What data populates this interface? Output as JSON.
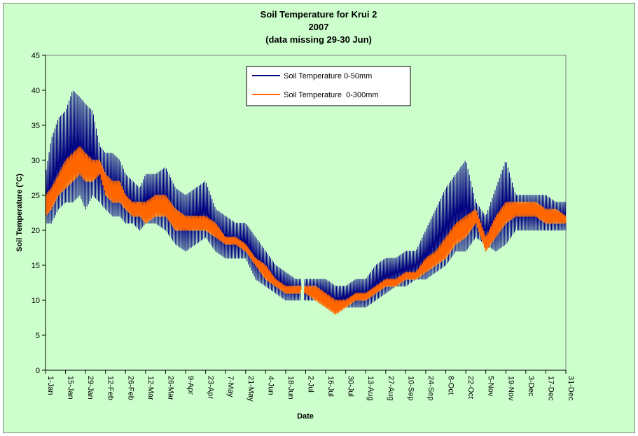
{
  "chart_data": {
    "type": "line",
    "title": [
      "Soil Temperature for Krui 2",
      "2007",
      "(data missing 29-30 Jun)"
    ],
    "xlabel": "Date",
    "ylabel": "Soil Temperature (°C)",
    "ylim": [
      0,
      45
    ],
    "yticks": [
      0,
      5,
      10,
      15,
      20,
      25,
      30,
      35,
      40,
      45
    ],
    "xlim": [
      "2007-01-01",
      "2007-12-31"
    ],
    "xtick_labels": [
      "1-Jan",
      "15-Jan",
      "29-Jan",
      "12-Feb",
      "26-Feb",
      "12-Mar",
      "26-Mar",
      "9-Apr",
      "23-Apr",
      "7-May",
      "21-May",
      "4-Jun",
      "18-Jun",
      "2-Jul",
      "16-Jul",
      "30-Jul",
      "13-Aug",
      "27-Aug",
      "10-Sep",
      "24-Sep",
      "8-Oct",
      "22-Oct",
      "5-Nov",
      "19-Nov",
      "3-Dec",
      "17-Dec",
      "31-Dec"
    ],
    "grid": false,
    "legend_position": "top-center",
    "series": [
      {
        "name": "Soil Temperature 0-50mm",
        "color": "#000080",
        "x": [
          "2007-01-01",
          "2007-01-05",
          "2007-01-10",
          "2007-01-15",
          "2007-01-20",
          "2007-01-25",
          "2007-01-29",
          "2007-02-03",
          "2007-02-08",
          "2007-02-12",
          "2007-02-17",
          "2007-02-22",
          "2007-02-26",
          "2007-03-03",
          "2007-03-08",
          "2007-03-12",
          "2007-03-19",
          "2007-03-26",
          "2007-04-02",
          "2007-04-09",
          "2007-04-16",
          "2007-04-23",
          "2007-04-30",
          "2007-05-07",
          "2007-05-14",
          "2007-05-21",
          "2007-05-28",
          "2007-06-04",
          "2007-06-11",
          "2007-06-18",
          "2007-06-25",
          "2007-07-02",
          "2007-07-09",
          "2007-07-16",
          "2007-07-23",
          "2007-07-30",
          "2007-08-06",
          "2007-08-13",
          "2007-08-20",
          "2007-08-27",
          "2007-09-03",
          "2007-09-10",
          "2007-09-17",
          "2007-09-24",
          "2007-10-01",
          "2007-10-08",
          "2007-10-15",
          "2007-10-22",
          "2007-10-29",
          "2007-11-05",
          "2007-11-12",
          "2007-11-19",
          "2007-11-26",
          "2007-12-03",
          "2007-12-10",
          "2007-12-17",
          "2007-12-24",
          "2007-12-31"
        ],
        "min": [
          21,
          21,
          23,
          24,
          24,
          25,
          23,
          25,
          24,
          23,
          22,
          22,
          21,
          21,
          20,
          21,
          21,
          20,
          18,
          17,
          18,
          19,
          17,
          16,
          16,
          16,
          13,
          12,
          11,
          10,
          10,
          10,
          10,
          9,
          8,
          9,
          9,
          9,
          10,
          11,
          12,
          12,
          13,
          13,
          14,
          15,
          17,
          17,
          19,
          18,
          17,
          18,
          20,
          20,
          20,
          20,
          20,
          20
        ],
        "max": [
          28,
          33,
          36,
          37,
          40,
          39,
          38,
          37,
          32,
          31,
          31,
          30,
          28,
          27,
          26,
          28,
          28,
          29,
          26,
          25,
          26,
          27,
          23,
          22,
          21,
          21,
          19,
          17,
          15,
          14,
          13,
          13,
          13,
          13,
          12,
          12,
          13,
          13,
          15,
          16,
          16,
          17,
          17,
          20,
          23,
          26,
          28,
          30,
          24,
          22,
          26,
          30,
          25,
          25,
          25,
          25,
          24,
          24
        ]
      },
      {
        "name": "Soil Temperature  0-300mm",
        "color": "#ff6600",
        "x": [
          "2007-01-01",
          "2007-01-05",
          "2007-01-10",
          "2007-01-15",
          "2007-01-20",
          "2007-01-25",
          "2007-01-29",
          "2007-02-03",
          "2007-02-08",
          "2007-02-12",
          "2007-02-17",
          "2007-02-22",
          "2007-02-26",
          "2007-03-03",
          "2007-03-08",
          "2007-03-12",
          "2007-03-19",
          "2007-03-26",
          "2007-04-02",
          "2007-04-09",
          "2007-04-16",
          "2007-04-23",
          "2007-04-30",
          "2007-05-07",
          "2007-05-14",
          "2007-05-21",
          "2007-05-28",
          "2007-06-04",
          "2007-06-11",
          "2007-06-18",
          "2007-06-25",
          "2007-07-02",
          "2007-07-09",
          "2007-07-16",
          "2007-07-23",
          "2007-07-30",
          "2007-08-06",
          "2007-08-13",
          "2007-08-20",
          "2007-08-27",
          "2007-09-03",
          "2007-09-10",
          "2007-09-17",
          "2007-09-24",
          "2007-10-01",
          "2007-10-08",
          "2007-10-15",
          "2007-10-22",
          "2007-10-29",
          "2007-11-05",
          "2007-11-12",
          "2007-11-19",
          "2007-11-26",
          "2007-12-03",
          "2007-12-10",
          "2007-12-17",
          "2007-12-24",
          "2007-12-31"
        ],
        "min": [
          22,
          23,
          25,
          26,
          27,
          28,
          27,
          27,
          28,
          25,
          24,
          24,
          23,
          22,
          22,
          21,
          22,
          22,
          20,
          20,
          20,
          20,
          19,
          18,
          18,
          17,
          15,
          13,
          12,
          11,
          11,
          11,
          10,
          9,
          8,
          9,
          10,
          10,
          11,
          12,
          12,
          13,
          13,
          14,
          15,
          16,
          18,
          19,
          21,
          17,
          19,
          21,
          22,
          22,
          22,
          21,
          21,
          21
        ],
        "max": [
          25,
          26,
          28,
          30,
          31,
          32,
          31,
          30,
          30,
          28,
          27,
          27,
          25,
          24,
          24,
          24,
          25,
          25,
          23,
          22,
          22,
          22,
          21,
          19,
          19,
          18,
          16,
          15,
          13,
          12,
          12,
          12,
          12,
          11,
          10,
          10,
          11,
          11,
          12,
          13,
          13,
          14,
          14,
          16,
          17,
          19,
          21,
          22,
          23,
          19,
          22,
          24,
          24,
          24,
          24,
          23,
          23,
          22
        ]
      }
    ]
  }
}
